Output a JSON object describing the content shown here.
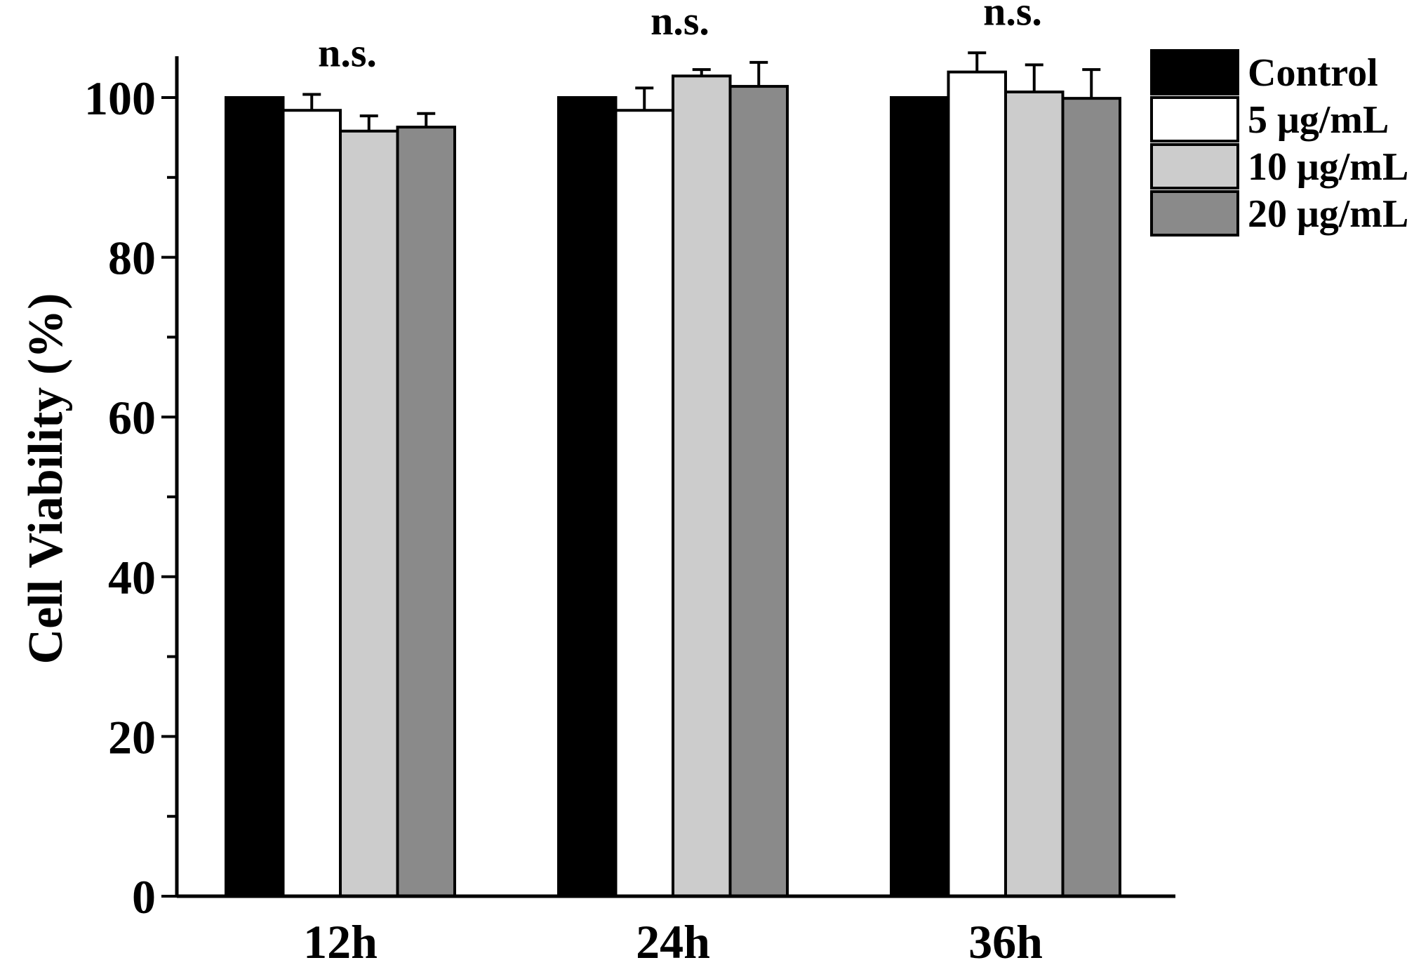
{
  "chart_data": {
    "type": "bar",
    "title": "",
    "xlabel": "",
    "ylabel": "Cell Viability (%)",
    "ylim": [
      0,
      105
    ],
    "yticks": [
      "0",
      "20",
      "40",
      "60",
      "80",
      "100"
    ],
    "categories": [
      "12h",
      "24h",
      "36h"
    ],
    "series": [
      {
        "name": "Control",
        "color": "#000000",
        "values": [
          100,
          100,
          100
        ],
        "errors": [
          0,
          0,
          0
        ]
      },
      {
        "name": "5 μg/mL",
        "color": "#ffffff",
        "values": [
          98.4,
          98.4,
          103.2
        ],
        "errors": [
          2.0,
          2.8,
          2.4
        ]
      },
      {
        "name": "10 μg/mL",
        "color": "#cccccc",
        "values": [
          95.8,
          102.7,
          100.7
        ],
        "errors": [
          1.9,
          0.8,
          3.4
        ]
      },
      {
        "name": "20 μg/mL",
        "color": "#8a8a8a",
        "values": [
          96.3,
          101.4,
          99.9
        ],
        "errors": [
          1.7,
          3.0,
          3.6
        ]
      }
    ],
    "annotations": [
      "n.s.",
      "n.s.",
      "n.s."
    ],
    "legend_position": "top-right",
    "grid": false
  }
}
